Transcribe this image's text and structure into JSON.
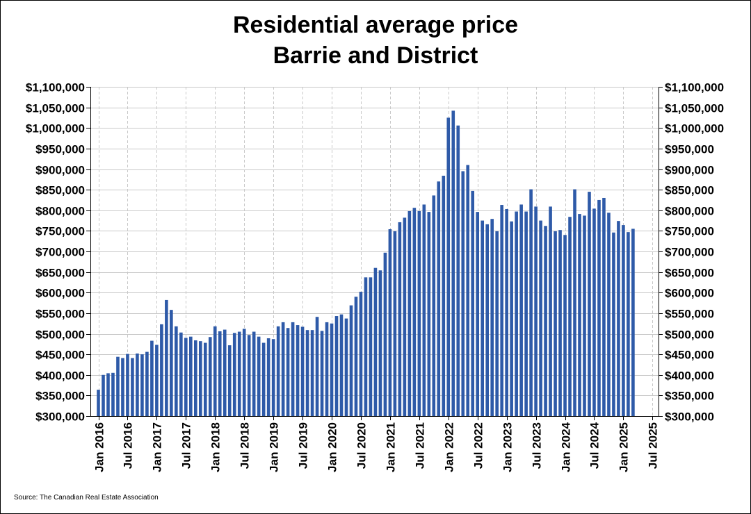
{
  "chart_data": {
    "type": "bar",
    "title_line1": "Residential average price",
    "title_line2": "Barrie and District",
    "source": "Source: The Canadian Real Estate Association",
    "xlabel": "",
    "ylabel": "",
    "ylim": [
      300000,
      1100000
    ],
    "y_ticks": [
      300000,
      350000,
      400000,
      450000,
      500000,
      550000,
      600000,
      650000,
      700000,
      750000,
      800000,
      850000,
      900000,
      950000,
      1000000,
      1050000,
      1100000
    ],
    "y_tick_labels": [
      "$300,000",
      "$350,000",
      "$400,000",
      "$450,000",
      "$500,000",
      "$550,000",
      "$600,000",
      "$650,000",
      "$700,000",
      "$750,000",
      "$800,000",
      "$850,000",
      "$900,000",
      "$950,000",
      "$1,000,000",
      "$1,050,000",
      "$1,100,000"
    ],
    "x_tick_labels": [
      "Jan 2016",
      "Jul 2016",
      "Jan 2017",
      "Jul 2017",
      "Jan 2018",
      "Jul 2018",
      "Jan 2019",
      "Jul 2019",
      "Jan 2020",
      "Jul 2020",
      "Jan 2021",
      "Jul 2021",
      "Jan 2022",
      "Jul 2022",
      "Jan 2023",
      "Jul 2023",
      "Jan 2024",
      "Jul 2024",
      "Jan 2025",
      "Jul 2025"
    ],
    "grid": true,
    "bar_color": "#2e5aa8",
    "start_month": "Jan 2016",
    "values": [
      364000,
      400000,
      404000,
      405000,
      444000,
      441000,
      451000,
      441000,
      452000,
      450000,
      456000,
      483000,
      473000,
      523000,
      582000,
      558000,
      518000,
      503000,
      490000,
      493000,
      484000,
      482000,
      478000,
      492000,
      518000,
      506000,
      510000,
      472000,
      502000,
      505000,
      512000,
      497000,
      505000,
      493000,
      478000,
      489000,
      487000,
      518000,
      528000,
      514000,
      528000,
      521000,
      517000,
      509000,
      509000,
      541000,
      507000,
      528000,
      525000,
      543000,
      547000,
      537000,
      569000,
      590000,
      602000,
      637000,
      637000,
      660000,
      654000,
      697000,
      754000,
      749000,
      771000,
      782000,
      798000,
      806000,
      798000,
      814000,
      796000,
      836000,
      870000,
      884000,
      1025000,
      1042000,
      1006000,
      895000,
      910000,
      847000,
      796000,
      775000,
      766000,
      779000,
      749000,
      813000,
      803000,
      773000,
      797000,
      814000,
      797000,
      851000,
      809000,
      775000,
      762000,
      809000,
      749000,
      752000,
      740000,
      784000,
      851000,
      791000,
      787000,
      845000,
      804000,
      825000,
      830000,
      794000,
      746000,
      774000,
      764000,
      747000,
      755000
    ]
  }
}
